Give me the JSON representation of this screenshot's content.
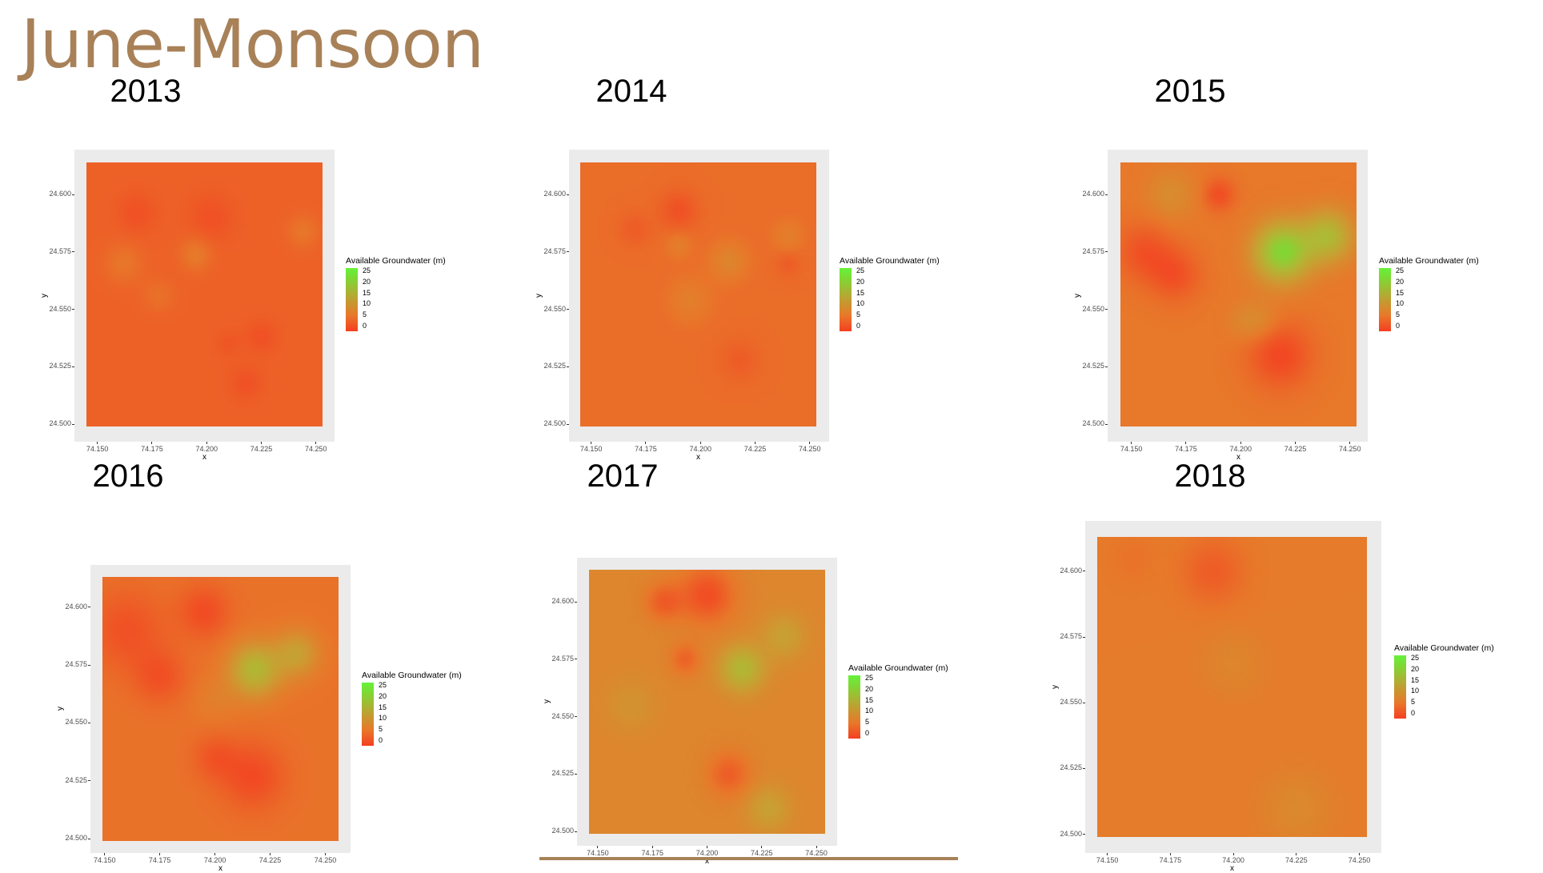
{
  "slide": {
    "title": "June-Monsoon",
    "accent_color": "#A88158"
  },
  "chart_data": [
    {
      "type": "heatmap",
      "title": "2013",
      "xlabel": "x",
      "ylabel": "y",
      "x_ticks": [
        "74.150",
        "74.175",
        "74.200",
        "74.225",
        "74.250"
      ],
      "y_ticks": [
        "24.500",
        "24.525",
        "24.550",
        "24.575",
        "24.600"
      ],
      "xlim": [
        74.145,
        74.253
      ],
      "ylim": [
        24.499,
        24.614
      ],
      "legend": {
        "title": "Available Groundwater (m)",
        "ticks": [
          "25",
          "20",
          "15",
          "10",
          "5",
          "0"
        ],
        "range": [
          0,
          25
        ],
        "placement": "right"
      },
      "base_value": 3,
      "hotspots": [
        {
          "x": 74.195,
          "y": 24.574,
          "v": 5.5,
          "r": 0.005
        },
        {
          "x": 74.162,
          "y": 24.57,
          "v": 5,
          "r": 0.006
        },
        {
          "x": 74.244,
          "y": 24.584,
          "v": 5,
          "r": 0.005
        },
        {
          "x": 74.178,
          "y": 24.556,
          "v": 4.5,
          "r": 0.005
        },
        {
          "x": 74.168,
          "y": 24.592,
          "v": 1.5,
          "r": 0.006
        },
        {
          "x": 74.202,
          "y": 24.59,
          "v": 1.5,
          "r": 0.007
        },
        {
          "x": 74.225,
          "y": 24.538,
          "v": 1.5,
          "r": 0.005
        },
        {
          "x": 74.218,
          "y": 24.518,
          "v": 1.5,
          "r": 0.005
        },
        {
          "x": 74.21,
          "y": 24.535,
          "v": 2,
          "r": 0.004
        }
      ]
    },
    {
      "type": "heatmap",
      "title": "2014",
      "xlabel": "x",
      "ylabel": "y",
      "x_ticks": [
        "74.150",
        "74.175",
        "74.200",
        "74.225",
        "74.250"
      ],
      "y_ticks": [
        "24.500",
        "24.525",
        "24.550",
        "24.575",
        "24.600"
      ],
      "xlim": [
        74.145,
        74.253
      ],
      "ylim": [
        24.499,
        24.614
      ],
      "legend": {
        "title": "Available Groundwater (m)",
        "ticks": [
          "25",
          "20",
          "15",
          "10",
          "5",
          "0"
        ],
        "range": [
          0,
          25
        ],
        "placement": "right"
      },
      "base_value": 4,
      "hotspots": [
        {
          "x": 74.213,
          "y": 24.571,
          "v": 7,
          "r": 0.006
        },
        {
          "x": 74.195,
          "y": 24.554,
          "v": 6,
          "r": 0.007
        },
        {
          "x": 74.19,
          "y": 24.578,
          "v": 6,
          "r": 0.004
        },
        {
          "x": 74.24,
          "y": 24.582,
          "v": 6,
          "r": 0.005
        },
        {
          "x": 74.19,
          "y": 24.593,
          "v": 1.5,
          "r": 0.006
        },
        {
          "x": 74.17,
          "y": 24.585,
          "v": 2.5,
          "r": 0.005
        },
        {
          "x": 74.218,
          "y": 24.528,
          "v": 2.5,
          "r": 0.006
        },
        {
          "x": 74.24,
          "y": 24.57,
          "v": 2.5,
          "r": 0.004
        }
      ]
    },
    {
      "type": "heatmap",
      "title": "2015",
      "xlabel": "x",
      "ylabel": "y",
      "x_ticks": [
        "74.150",
        "74.175",
        "74.200",
        "74.225",
        "74.250"
      ],
      "y_ticks": [
        "24.500",
        "24.525",
        "24.550",
        "24.575",
        "24.600"
      ],
      "xlim": [
        74.145,
        74.253
      ],
      "ylim": [
        24.499,
        24.614
      ],
      "legend": {
        "title": "Available Groundwater (m)",
        "ticks": [
          "25",
          "20",
          "15",
          "10",
          "5",
          "0"
        ],
        "range": [
          0,
          25
        ],
        "placement": "right"
      },
      "base_value": 5,
      "hotspots": [
        {
          "x": 74.219,
          "y": 24.575,
          "v": 20,
          "r": 0.009
        },
        {
          "x": 74.24,
          "y": 24.582,
          "v": 15,
          "r": 0.008
        },
        {
          "x": 74.168,
          "y": 24.6,
          "v": 8,
          "r": 0.008
        },
        {
          "x": 74.21,
          "y": 24.545,
          "v": 7,
          "r": 0.006
        },
        {
          "x": 74.202,
          "y": 24.545,
          "v": 7,
          "r": 0.006
        },
        {
          "x": 74.156,
          "y": 24.575,
          "v": 1.5,
          "r": 0.009
        },
        {
          "x": 74.17,
          "y": 24.565,
          "v": 1.5,
          "r": 0.008
        },
        {
          "x": 74.19,
          "y": 24.6,
          "v": 1,
          "r": 0.005
        },
        {
          "x": 74.218,
          "y": 24.53,
          "v": 0.5,
          "r": 0.01
        }
      ]
    },
    {
      "type": "heatmap",
      "title": "2016",
      "xlabel": "x",
      "ylabel": "y",
      "x_ticks": [
        "74.150",
        "74.175",
        "74.200",
        "74.225",
        "74.250"
      ],
      "y_ticks": [
        "24.500",
        "24.525",
        "24.550",
        "24.575",
        "24.600"
      ],
      "xlim": [
        74.149,
        74.256
      ],
      "ylim": [
        24.499,
        24.613
      ],
      "legend": {
        "title": "Available Groundwater (m)",
        "ticks": [
          "25",
          "20",
          "15",
          "10",
          "5",
          "0"
        ],
        "range": [
          0,
          25
        ],
        "placement": "right"
      },
      "base_value": 4.5,
      "hotspots": [
        {
          "x": 74.218,
          "y": 24.573,
          "v": 15,
          "r": 0.008
        },
        {
          "x": 74.237,
          "y": 24.58,
          "v": 11,
          "r": 0.007
        },
        {
          "x": 74.2,
          "y": 24.56,
          "v": 6,
          "r": 0.007
        },
        {
          "x": 74.16,
          "y": 24.59,
          "v": 1.5,
          "r": 0.012
        },
        {
          "x": 74.195,
          "y": 24.598,
          "v": 1,
          "r": 0.008
        },
        {
          "x": 74.175,
          "y": 24.57,
          "v": 1.5,
          "r": 0.008
        },
        {
          "x": 74.217,
          "y": 24.527,
          "v": 0.8,
          "r": 0.01
        },
        {
          "x": 74.2,
          "y": 24.535,
          "v": 2,
          "r": 0.007
        }
      ]
    },
    {
      "type": "heatmap",
      "title": "2017",
      "xlabel": "x",
      "ylabel": "y",
      "x_ticks": [
        "74.150",
        "74.175",
        "74.200",
        "74.225",
        "74.250"
      ],
      "y_ticks": [
        "24.500",
        "24.525",
        "24.550",
        "24.575",
        "24.600"
      ],
      "xlim": [
        74.146,
        74.254
      ],
      "ylim": [
        24.499,
        24.614
      ],
      "legend": {
        "title": "Available Groundwater (m)",
        "ticks": [
          "25",
          "20",
          "15",
          "10",
          "5",
          "0"
        ],
        "range": [
          0,
          25
        ],
        "placement": "right"
      },
      "base_value": 7,
      "hotspots": [
        {
          "x": 74.216,
          "y": 24.571,
          "v": 15,
          "r": 0.007
        },
        {
          "x": 74.235,
          "y": 24.585,
          "v": 11,
          "r": 0.007
        },
        {
          "x": 74.228,
          "y": 24.51,
          "v": 11,
          "r": 0.007
        },
        {
          "x": 74.165,
          "y": 24.555,
          "v": 9,
          "r": 0.008
        },
        {
          "x": 74.2,
          "y": 24.603,
          "v": 1,
          "r": 0.009
        },
        {
          "x": 74.18,
          "y": 24.6,
          "v": 2.5,
          "r": 0.006
        },
        {
          "x": 74.19,
          "y": 24.575,
          "v": 3,
          "r": 0.005
        },
        {
          "x": 74.21,
          "y": 24.525,
          "v": 2.5,
          "r": 0.007
        }
      ]
    },
    {
      "type": "heatmap",
      "title": "2018",
      "xlabel": "x",
      "ylabel": "y",
      "x_ticks": [
        "74.150",
        "74.175",
        "74.200",
        "74.225",
        "74.250"
      ],
      "y_ticks": [
        "24.500",
        "24.525",
        "24.550",
        "24.575",
        "24.600"
      ],
      "xlim": [
        74.146,
        74.253
      ],
      "ylim": [
        24.499,
        24.613
      ],
      "legend": {
        "title": "Available Groundwater (m)",
        "ticks": [
          "25",
          "20",
          "15",
          "10",
          "5",
          "0"
        ],
        "range": [
          0,
          25
        ],
        "placement": "right"
      },
      "base_value": 5.5,
      "hotspots": [
        {
          "x": 74.192,
          "y": 24.6,
          "v": 2.5,
          "r": 0.009
        },
        {
          "x": 74.2,
          "y": 24.565,
          "v": 7,
          "r": 0.009
        },
        {
          "x": 74.225,
          "y": 24.51,
          "v": 7.5,
          "r": 0.01
        },
        {
          "x": 74.16,
          "y": 24.605,
          "v": 4.5,
          "r": 0.007
        }
      ]
    }
  ]
}
